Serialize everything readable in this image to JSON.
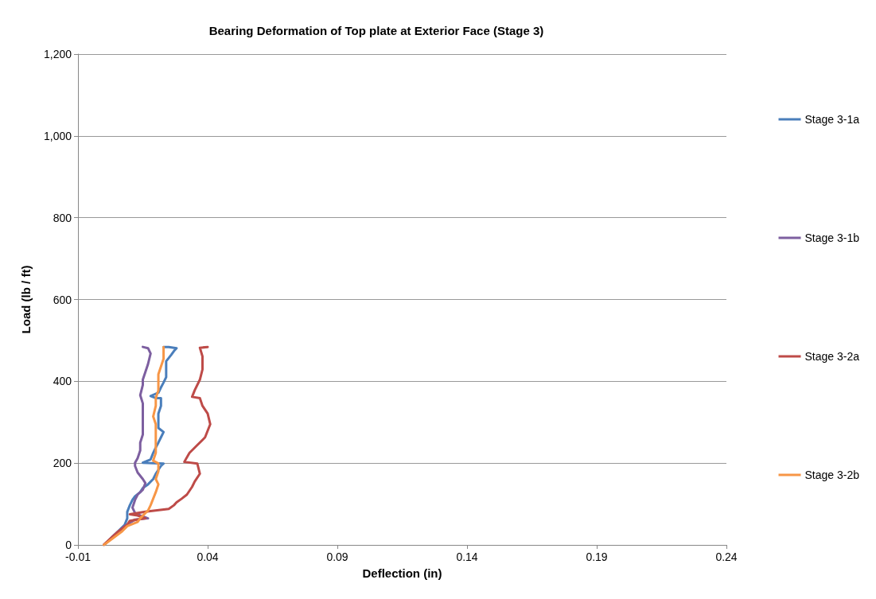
{
  "chart_data": {
    "type": "line",
    "title": "Bearing Deformation of Top plate at Exterior Face (Stage 3)",
    "xlabel": "Deflection (in)",
    "ylabel": "Load (lb / ft)",
    "xlim": [
      -0.01,
      0.24
    ],
    "xticks": [
      -0.01,
      0.04,
      0.09,
      0.14,
      0.19,
      0.24
    ],
    "ylim": [
      0,
      1200
    ],
    "yticks": [
      0,
      200,
      400,
      600,
      800,
      {
        "value": 1000,
        "label": "1,000"
      },
      {
        "value": 1200,
        "label": "1,200"
      }
    ],
    "grid": "y",
    "legend": "right",
    "marker": "none",
    "line_style": "solid",
    "series": [
      {
        "name": "Stage 3-1a",
        "color": "#4a7ebb",
        "x": [
          0,
          0.004,
          0.008,
          0.009,
          0.009,
          0.01,
          0.011,
          0.012,
          0.014,
          0.015,
          0.017,
          0.019,
          0.02,
          0.022,
          0.023,
          0.015,
          0.018,
          0.019,
          0.02,
          0.021,
          0.022,
          0.023,
          0.021,
          0.021,
          0.021,
          0.022,
          0.022,
          0.02,
          0.018,
          0.021,
          0.022,
          0.023,
          0.024,
          0.024,
          0.024,
          0.026,
          0.027,
          0.028,
          0.025,
          0.023
        ],
        "values": [
          0,
          24,
          49,
          65,
          81,
          97,
          110,
          119,
          129,
          139,
          148,
          161,
          174,
          193,
          199,
          201,
          209,
          225,
          238,
          250,
          263,
          276,
          286,
          302,
          321,
          340,
          359,
          359,
          364,
          372,
          385,
          397,
          410,
          429,
          449,
          465,
          474,
          481,
          484,
          484
        ]
      },
      {
        "name": "Stage 3-1b",
        "color": "#7d5fa0",
        "x": [
          0,
          0.004,
          0.008,
          0.012,
          0.017,
          0.014,
          0.012,
          0.011,
          0.012,
          0.013,
          0.015,
          0.016,
          0.015,
          0.013,
          0.012,
          0.012,
          0.013,
          0.014,
          0.014,
          0.015,
          0.015,
          0.015,
          0.015,
          0.014,
          0.015,
          0.015,
          0.016,
          0.017,
          0.018,
          0.017,
          0.015
        ],
        "values": [
          0,
          24,
          46,
          62,
          65,
          72,
          78,
          91,
          110,
          123,
          135,
          151,
          161,
          177,
          193,
          201,
          212,
          231,
          250,
          270,
          295,
          327,
          346,
          366,
          391,
          404,
          423,
          442,
          468,
          481,
          484
        ]
      },
      {
        "name": "Stage 3-2a",
        "color": "#be4b48",
        "x": [
          0,
          0.005,
          0.009,
          0.01,
          0.016,
          0.013,
          0.01,
          0.016,
          0.025,
          0.027,
          0.028,
          0.03,
          0.032,
          0.034,
          0.035,
          0.037,
          0.036,
          0.031,
          0.033,
          0.036,
          0.039,
          0.041,
          0.04,
          0.038,
          0.037,
          0.034,
          0.035,
          0.037,
          0.038,
          0.038,
          0.037,
          0.04
        ],
        "values": [
          1,
          30,
          49,
          59,
          65,
          72,
          75,
          81,
          88,
          97,
          104,
          113,
          123,
          142,
          155,
          174,
          199,
          203,
          225,
          244,
          263,
          295,
          321,
          340,
          359,
          362,
          378,
          404,
          429,
          461,
          482,
          484
        ]
      },
      {
        "name": "Stage 3-2b",
        "color": "#f79646",
        "x": [
          0,
          0.003,
          0.007,
          0.009,
          0.013,
          0.014,
          0.016,
          0.017,
          0.018,
          0.019,
          0.02,
          0.021,
          0.02,
          0.021,
          0.021,
          0.019,
          0.02,
          0.02,
          0.02,
          0.02,
          0.019,
          0.02,
          0.02,
          0.021,
          0.021,
          0.021,
          0.022,
          0.023,
          0.023,
          0.023
        ],
        "values": [
          0,
          14,
          33,
          46,
          56,
          65,
          78,
          84,
          97,
          113,
          129,
          148,
          161,
          180,
          199,
          206,
          225,
          250,
          270,
          295,
          314,
          340,
          359,
          378,
          397,
          417,
          436,
          455,
          481,
          484
        ]
      }
    ]
  }
}
